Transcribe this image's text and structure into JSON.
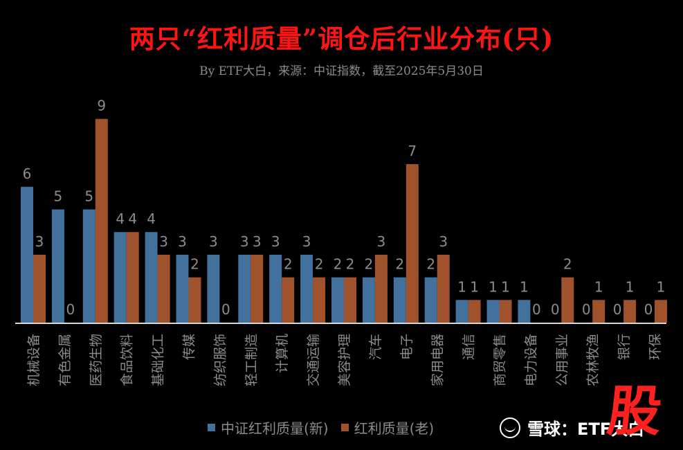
{
  "title": "两只“红利质量”调仓后行业分布(只)",
  "subtitle": "By ETF大白，来源：中证指数，截至2025年5月30日",
  "legend": {
    "series_new": "中证红利质量(新)",
    "series_old": "红利质量(老)"
  },
  "watermark": {
    "brand": "雪球",
    "separator": "：",
    "author": "ETF大白"
  },
  "stamp_text": "股",
  "colors": {
    "new": "#41719c",
    "old": "#a0522d",
    "axis": "#d9d9d9",
    "label": "#8c8c8c",
    "title": "#ff1414"
  },
  "chart_data": {
    "type": "bar",
    "title": "两只“红利质量”调仓后行业分布(只)",
    "categories": [
      "机械设备",
      "有色金属",
      "医药生物",
      "食品饮料",
      "基础化工",
      "传媒",
      "纺织服饰",
      "轻工制造",
      "计算机",
      "交通运输",
      "美容护理",
      "汽车",
      "电子",
      "家用电器",
      "通信",
      "商贸零售",
      "电力设备",
      "公用事业",
      "农林牧渔",
      "银行",
      "环保"
    ],
    "series": [
      {
        "name": "中证红利质量(新)",
        "values": [
          6,
          5,
          5,
          4,
          4,
          3,
          3,
          3,
          3,
          3,
          2,
          2,
          2,
          2,
          1,
          1,
          1,
          0,
          0,
          0,
          0
        ]
      },
      {
        "name": "红利质量(老)",
        "values": [
          3,
          0,
          9,
          4,
          3,
          2,
          0,
          3,
          2,
          2,
          2,
          3,
          7,
          3,
          1,
          1,
          0,
          2,
          1,
          1,
          1
        ]
      }
    ],
    "ylim": [
      0,
      9
    ],
    "grid": false,
    "legend_position": "bottom",
    "data_labels": true
  }
}
